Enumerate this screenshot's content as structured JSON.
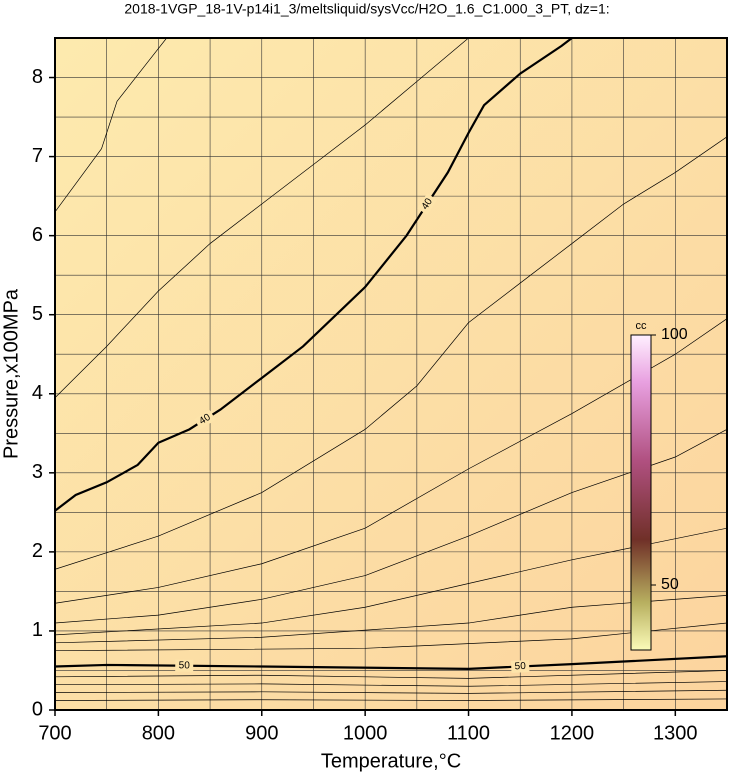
{
  "chart_data": {
    "type": "contour",
    "title": "2018-1VGP_18-1V-p14i1_3/meltsliquid/sysVcc/H2O_1.6_C1.000_3_PT, dz=1:",
    "x_label": "Temperature,°C",
    "y_label": "Pressure,x100MPa",
    "xlim": [
      700,
      1350
    ],
    "ylim": [
      0,
      8.5
    ],
    "xticks": [
      700,
      800,
      900,
      1000,
      1100,
      1200,
      1300
    ],
    "yticks": [
      0,
      1,
      2,
      3,
      4,
      5,
      6,
      7,
      8
    ],
    "xgrid": [
      750,
      800,
      850,
      900,
      950,
      1000,
      1050,
      1100,
      1150,
      1200,
      1250,
      1300
    ],
    "ygrid": [
      0.5,
      1,
      1.5,
      2,
      2.5,
      3,
      3.5,
      4,
      4.5,
      5,
      5.5,
      6,
      6.5,
      7,
      7.5,
      8
    ],
    "contours": [
      {
        "x": [
          700,
          745,
          760,
          790,
          808
        ],
        "y": [
          6.3,
          7.1,
          7.7,
          8.2,
          8.5
        ]
      },
      {
        "x": [
          700,
          750,
          800,
          850,
          900,
          950,
          1000,
          1050,
          1100
        ],
        "y": [
          3.95,
          4.6,
          5.3,
          5.9,
          6.4,
          6.9,
          7.4,
          7.95,
          8.5
        ]
      },
      {
        "level": 40,
        "x": [
          700,
          720,
          750,
          780,
          800,
          830,
          860,
          900,
          940,
          980,
          1000,
          1040,
          1080,
          1100,
          1115,
          1150,
          1190,
          1200
        ],
        "y": [
          2.52,
          2.72,
          2.88,
          3.1,
          3.38,
          3.55,
          3.8,
          4.2,
          4.6,
          5.1,
          5.35,
          6.0,
          6.8,
          7.3,
          7.65,
          8.05,
          8.4,
          8.5
        ]
      },
      {
        "x": [
          700,
          800,
          900,
          1000,
          1050,
          1100,
          1150,
          1200,
          1250,
          1300,
          1350
        ],
        "y": [
          1.78,
          2.2,
          2.75,
          3.55,
          4.1,
          4.9,
          5.4,
          5.9,
          6.4,
          6.8,
          7.25
        ]
      },
      {
        "x": [
          700,
          800,
          900,
          1000,
          1100,
          1200,
          1300,
          1350
        ],
        "y": [
          1.35,
          1.55,
          1.85,
          2.3,
          3.05,
          3.75,
          4.5,
          4.95
        ]
      },
      {
        "x": [
          700,
          800,
          900,
          1000,
          1100,
          1200,
          1300,
          1350
        ],
        "y": [
          1.1,
          1.2,
          1.4,
          1.7,
          2.2,
          2.75,
          3.2,
          3.55
        ]
      },
      {
        "x": [
          700,
          900,
          1000,
          1100,
          1200,
          1350
        ],
        "y": [
          0.95,
          1.1,
          1.3,
          1.6,
          1.9,
          2.3
        ]
      },
      {
        "x": [
          700,
          900,
          1100,
          1200,
          1350
        ],
        "y": [
          0.85,
          0.92,
          1.1,
          1.3,
          1.45
        ]
      },
      {
        "x": [
          700,
          1000,
          1200,
          1350
        ],
        "y": [
          0.75,
          0.78,
          0.9,
          1.1
        ]
      },
      {
        "level": 50,
        "x": [
          700,
          750,
          900,
          1100,
          1200,
          1350
        ],
        "y": [
          0.55,
          0.57,
          0.55,
          0.52,
          0.58,
          0.68
        ]
      },
      {
        "x": [
          700,
          900,
          1100,
          1350
        ],
        "y": [
          0.42,
          0.44,
          0.4,
          0.5
        ]
      },
      {
        "x": [
          700,
          900,
          1100,
          1350
        ],
        "y": [
          0.32,
          0.33,
          0.3,
          0.36
        ]
      },
      {
        "x": [
          700,
          900,
          1100,
          1350
        ],
        "y": [
          0.22,
          0.23,
          0.21,
          0.25
        ]
      },
      {
        "x": [
          700,
          900,
          1100,
          1350
        ],
        "y": [
          0.12,
          0.13,
          0.12,
          0.14
        ]
      }
    ],
    "colorbar": {
      "label": "cc",
      "lim": [
        37,
        100
      ],
      "ticks": [
        100,
        50
      ]
    }
  }
}
